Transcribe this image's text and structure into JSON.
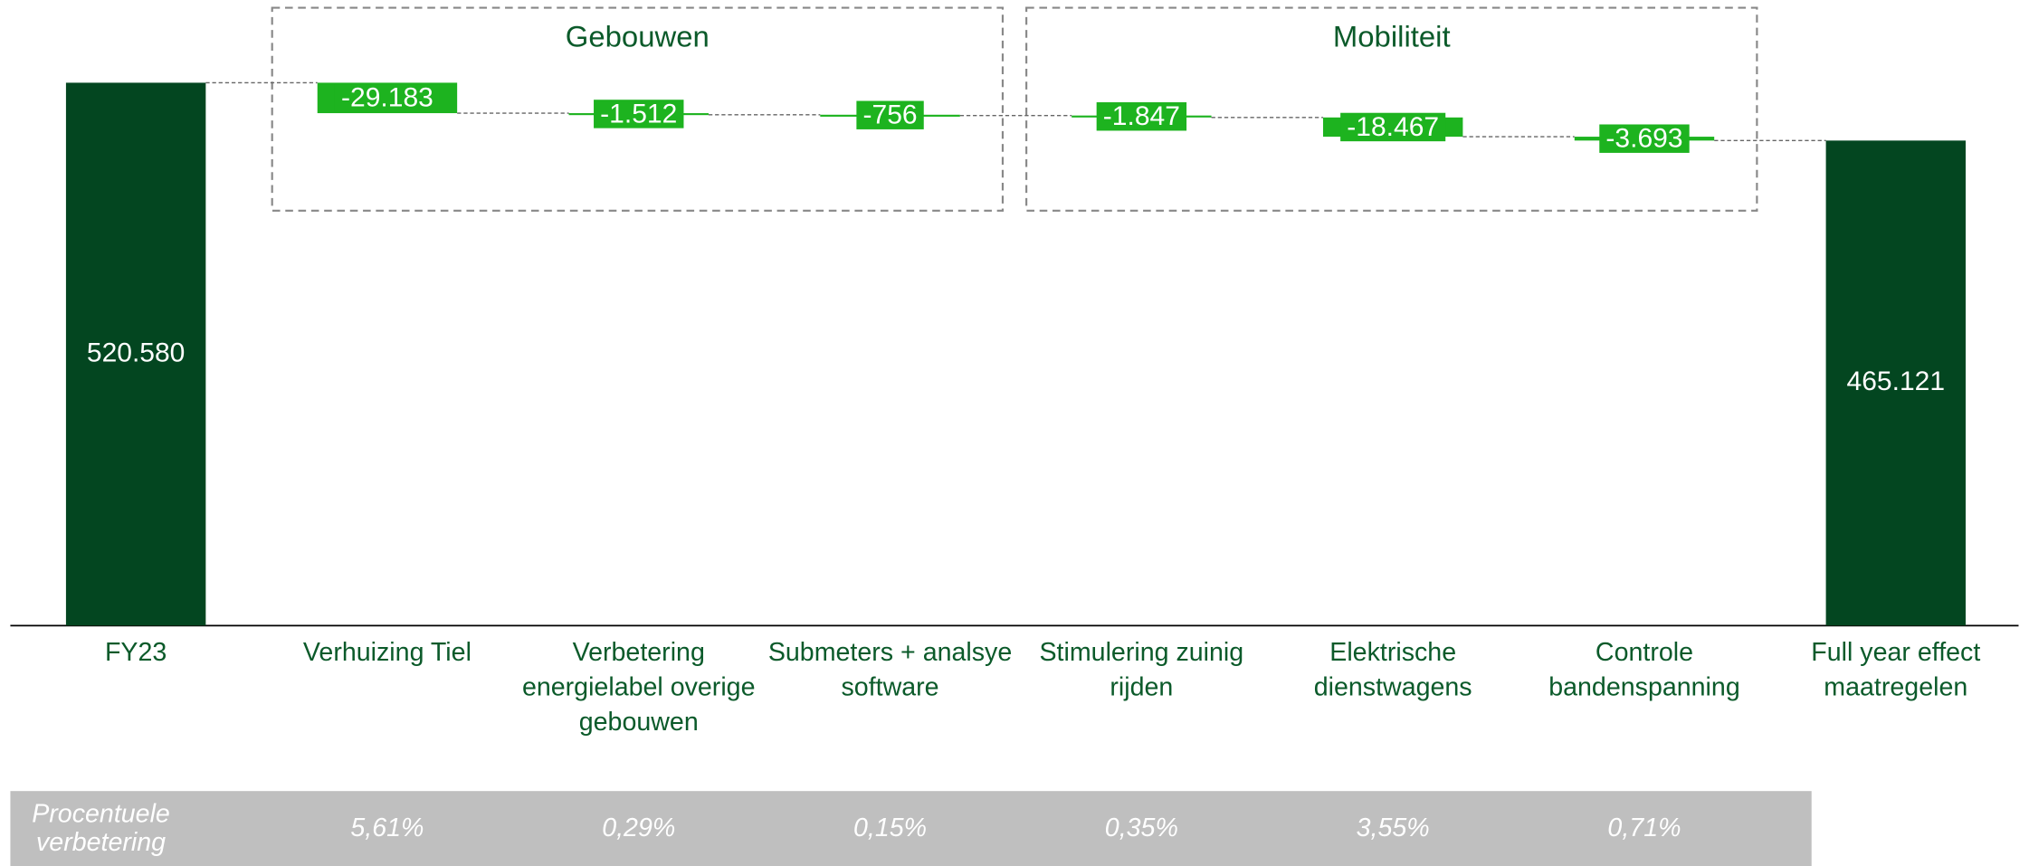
{
  "chart_data": {
    "type": "waterfall",
    "categories": [
      "FY23",
      "Verhuizing Tiel",
      "Verbetering energielabel overige gebouwen",
      "Submeters + analsye software",
      "Stimulering zuinig rijden",
      "Elektrische dienstwagens",
      "Controle bandenspanning",
      "Full year effect maatregelen"
    ],
    "values": [
      520580,
      -29183,
      -1512,
      -756,
      -1847,
      -18467,
      -3693,
      465121
    ],
    "value_labels": [
      "520.580",
      "-29.183",
      "-1.512",
      "-756",
      "-1.847",
      "-18.467",
      "-3.693",
      "465.121"
    ],
    "measure": [
      "total",
      "relative",
      "relative",
      "relative",
      "relative",
      "relative",
      "relative",
      "total"
    ],
    "total_color": "#034620",
    "delta_color": "#1db31f",
    "groups": [
      {
        "label": "Gebouwen",
        "from": 1,
        "to": 3
      },
      {
        "label": "Mobiliteit",
        "from": 4,
        "to": 6
      }
    ],
    "percent_row": {
      "label": "Procentuele verbetering",
      "cells": [
        null,
        "5,61%",
        "0,29%",
        "0,15%",
        "0,35%",
        "3,55%",
        "0,71%",
        null
      ]
    }
  }
}
